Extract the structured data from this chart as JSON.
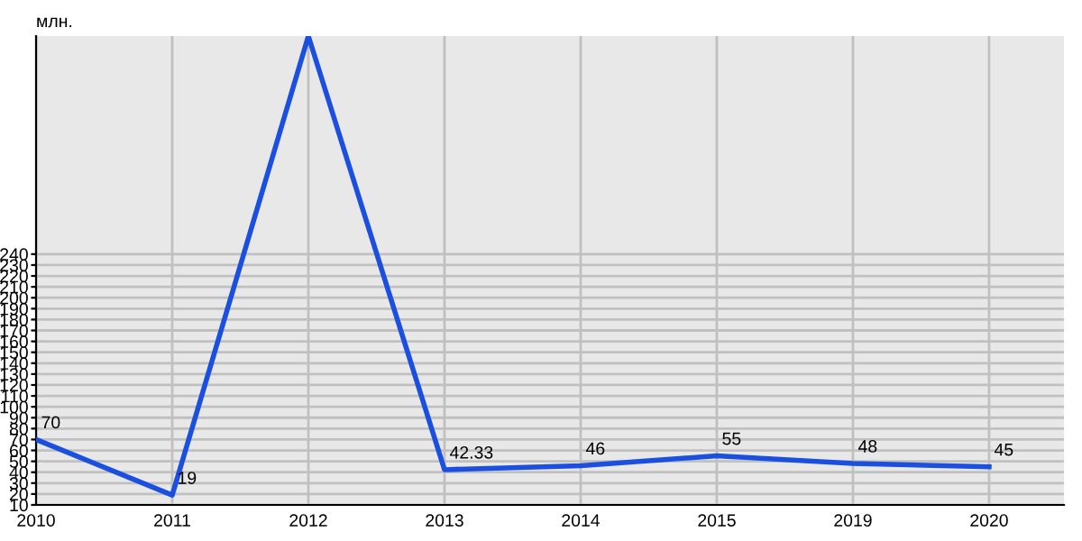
{
  "chart_data": {
    "type": "line",
    "ylabel": "млн.",
    "categories": [
      "2010",
      "2011",
      "2012",
      "2013",
      "2014",
      "2015",
      "2019",
      "2020"
    ],
    "series": [
      {
        "color": "#1a4fe0",
        "values": [
          70,
          19,
          440,
          42.33,
          46,
          55,
          48,
          45
        ],
        "value_labels": [
          "70",
          "19",
          null,
          "42.33",
          "46",
          "55",
          "48",
          "45"
        ]
      }
    ],
    "ylim": [
      10,
      440
    ],
    "yticks": [
      10,
      20,
      30,
      40,
      50,
      60,
      70,
      80,
      90,
      100,
      110,
      120,
      130,
      140,
      150,
      160,
      170,
      180,
      190,
      200,
      210,
      220,
      230,
      240
    ],
    "grid": true,
    "marker": "none",
    "line_style": "solid"
  }
}
